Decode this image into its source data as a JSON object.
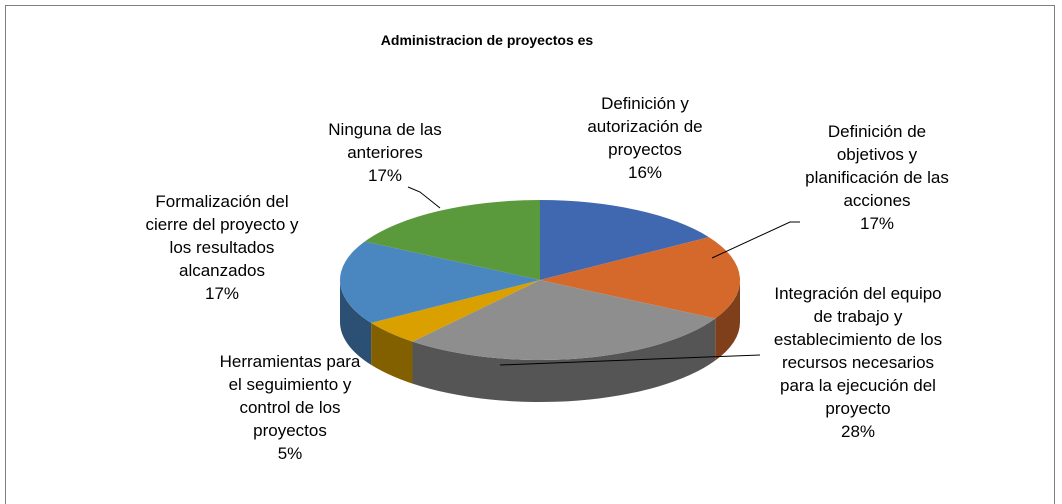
{
  "chart_data": {
    "type": "pie",
    "title": "Administracion de proyectos es",
    "categories": [
      "Definición y autorización de proyectos",
      "Definición de objetivos y planificación de las acciones",
      "Integración del equipo de trabajo y establecimiento de los recursos necesarios para la ejecución del proyecto",
      "Herramientas para el seguimiento y control de los proyectos",
      "Formalización del cierre del proyecto y los resultados alcanzados",
      "Ninguna de las anteriores"
    ],
    "values": [
      16,
      17,
      28,
      5,
      17,
      17
    ],
    "value_labels": [
      "16%",
      "17%",
      "28%",
      "5%",
      "17%",
      "17%"
    ],
    "colors": [
      "#4068b0",
      "#d4692b",
      "#8e8e8e",
      "#d9a000",
      "#4a86c0",
      "#5b9a3c"
    ]
  }
}
